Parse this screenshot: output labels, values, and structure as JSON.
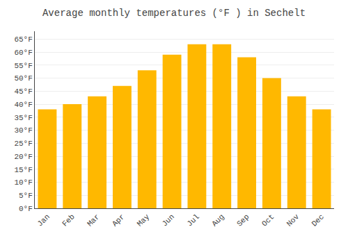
{
  "chart_data": {
    "type": "bar",
    "title": "Average monthly temperatures (°F ) in Sechelt",
    "categories": [
      "Jan",
      "Feb",
      "Mar",
      "Apr",
      "May",
      "Jun",
      "Jul",
      "Aug",
      "Sep",
      "Oct",
      "Nov",
      "Dec"
    ],
    "values": [
      38,
      40,
      43,
      47,
      53,
      59,
      63,
      63,
      58,
      50,
      43,
      38
    ],
    "color": "#FFB800",
    "ylim": [
      0,
      68
    ],
    "yticks": [
      {
        "value": 0,
        "label": "0°F"
      },
      {
        "value": 5,
        "label": "5°F"
      },
      {
        "value": 10,
        "label": "10°F"
      },
      {
        "value": 15,
        "label": "15°F"
      },
      {
        "value": 20,
        "label": "20°F"
      },
      {
        "value": 25,
        "label": "25°F"
      },
      {
        "value": 30,
        "label": "30°F"
      },
      {
        "value": 35,
        "label": "35°F"
      },
      {
        "value": 40,
        "label": "40°F"
      },
      {
        "value": 45,
        "label": "45°F"
      },
      {
        "value": 50,
        "label": "50°F"
      },
      {
        "value": 55,
        "label": "55°F"
      },
      {
        "value": 60,
        "label": "60°F"
      },
      {
        "value": 65,
        "label": "65°F"
      }
    ],
    "grid": true
  }
}
